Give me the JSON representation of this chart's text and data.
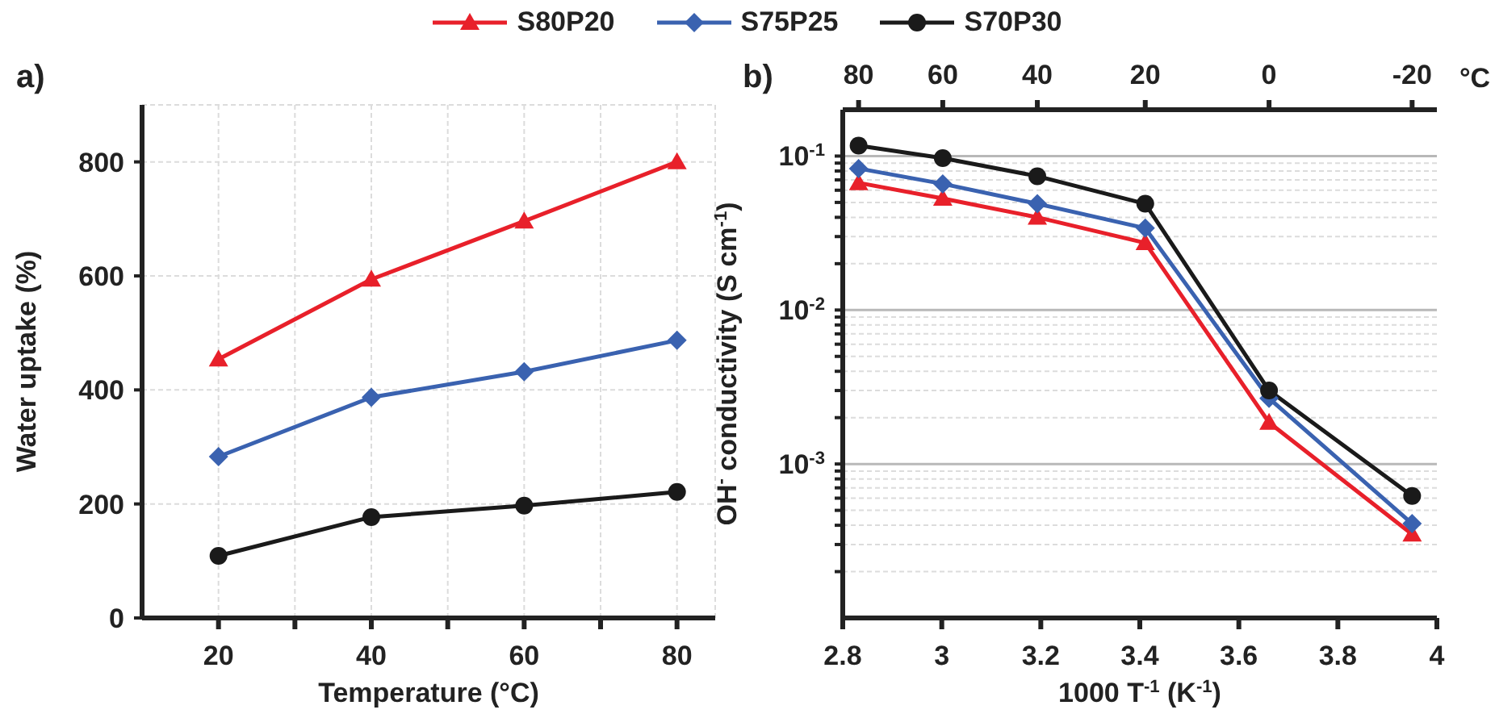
{
  "chart_data": [
    {
      "type": "line",
      "title": "a)",
      "xlabel": "Temperature  (°C)",
      "ylabel": "Water uptake (%)",
      "x": [
        20,
        40,
        60,
        80
      ],
      "xlim": [
        10,
        85
      ],
      "xticks": [
        20,
        {
          "value": 30,
          "label": null
        },
        40,
        {
          "value": 50,
          "label": null
        },
        60,
        {
          "value": 70,
          "label": null
        },
        80
      ],
      "ylim": [
        0,
        900
      ],
      "yticks": [
        0,
        200,
        400,
        600,
        800
      ],
      "grid": true,
      "legend": "top",
      "series": [
        {
          "name": "S80P20",
          "color": "#e8202a",
          "marker": "triangle",
          "values": [
            454,
            594,
            696,
            800
          ]
        },
        {
          "name": "S75P25",
          "color": "#3a62b0",
          "marker": "diamond",
          "values": [
            283,
            387,
            432,
            487
          ]
        },
        {
          "name": "S70P30",
          "color": "#1a1a1a",
          "marker": "circle",
          "values": [
            109,
            177,
            197,
            221
          ]
        }
      ]
    },
    {
      "type": "line",
      "title": "b)",
      "xlabel": "1000 T$^{-1}$ (K$^{-1}$)",
      "ylabel": "OH$^{-}$ conductivity (S cm$^{-1}$)",
      "annotations": [
        {
          "text": "80",
          "x": 2.832
        },
        {
          "text": "60",
          "x": 3.002
        },
        {
          "text": "40",
          "x": 3.193
        },
        {
          "text": "20",
          "x": 3.411
        },
        {
          "text": "0",
          "x": 3.661
        },
        {
          "text": "-20",
          "x": 3.95
        },
        "°C"
      ],
      "log": "y",
      "x": [
        2.832,
        3.002,
        3.193,
        3.411,
        3.661,
        3.95
      ],
      "xlim": [
        2.8,
        4
      ],
      "xticks": [
        {
          "value": 2.8,
          "label": "2.8"
        },
        3,
        {
          "value": 3.2,
          "label": "3.2"
        },
        {
          "value": 3.4,
          "label": "3.4"
        },
        {
          "value": 3.6,
          "label": "3.6"
        },
        {
          "value": 3.8,
          "label": "3.8"
        },
        4
      ],
      "ylim": [
        0.0001,
        0.2
      ],
      "yticks": [
        {
          "value": 0.0002,
          "label": null
        },
        {
          "value": 0.0003,
          "label": null
        },
        {
          "value": 0.0004,
          "label": null
        },
        {
          "value": 0.0005,
          "label": null
        },
        {
          "value": 0.0006,
          "label": null
        },
        {
          "value": 0.0007,
          "label": null
        },
        {
          "value": 0.0008,
          "label": null
        },
        {
          "value": 0.0009,
          "label": null
        },
        {
          "value": 0.001,
          "label": "10$^{-3}$"
        },
        {
          "value": 0.002,
          "label": null
        },
        {
          "value": 0.003,
          "label": null
        },
        {
          "value": 0.004,
          "label": null
        },
        {
          "value": 0.005,
          "label": null
        },
        {
          "value": 0.006,
          "label": null
        },
        {
          "value": 0.007,
          "label": null
        },
        {
          "value": 0.008,
          "label": null
        },
        {
          "value": 0.009,
          "label": null
        },
        {
          "value": 0.01,
          "label": "10$^{-2}$"
        },
        {
          "value": 0.02,
          "label": null
        },
        {
          "value": 0.03,
          "label": null
        },
        {
          "value": 0.04,
          "label": null
        },
        {
          "value": 0.05,
          "label": null
        },
        {
          "value": 0.06,
          "label": null
        },
        {
          "value": 0.07,
          "label": null
        },
        {
          "value": 0.08,
          "label": null
        },
        {
          "value": 0.09,
          "label": null
        },
        {
          "value": 0.1,
          "label": "10$^{-1}$"
        }
      ],
      "grid": "y",
      "series": [
        {
          "color": "#e8202a",
          "marker": "triangle",
          "values": [
            0.067,
            0.053,
            0.04,
            0.0273,
            0.00186,
            0.00035
          ]
        },
        {
          "color": "#3a62b0",
          "marker": "diamond",
          "values": [
            0.083,
            0.066,
            0.049,
            0.034,
            0.00267,
            0.00041
          ]
        },
        {
          "color": "#1a1a1a",
          "marker": "circle",
          "values": [
            0.117,
            0.097,
            0.074,
            0.049,
            0.003,
            0.00062
          ]
        }
      ]
    }
  ]
}
